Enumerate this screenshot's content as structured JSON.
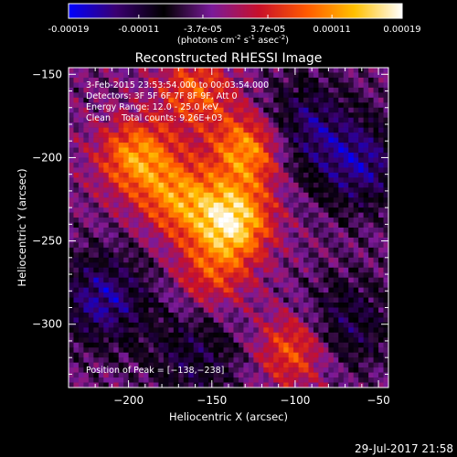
{
  "colorbar": {
    "ticks": [
      "-0.00019",
      "-0.00011",
      "-3.7e-05",
      "3.7e-05",
      "0.00011",
      "0.00019"
    ],
    "tick_values": [
      -0.00019,
      -0.00011,
      -3.7e-05,
      3.7e-05,
      0.00011,
      0.00019
    ],
    "range": [
      -0.00019,
      0.00019
    ],
    "units_parts": [
      "(photons cm",
      "-2",
      " s",
      "-1",
      " asec",
      "-2",
      ")"
    ],
    "stops": [
      "#0000ff",
      "#3a0070",
      "#000000",
      "#7a1a9a",
      "#c8102a",
      "#ff5a00",
      "#ffc000",
      "#ffffff"
    ]
  },
  "chart_data": {
    "type": "heatmap",
    "title": "Reconstructed RHESSI Image",
    "xlabel": "Heliocentric X (arcsec)",
    "ylabel": "Heliocentric Y (arcsec)",
    "xlim": [
      -236,
      -44
    ],
    "ylim": [
      -338,
      -146
    ],
    "xticks": [
      -200,
      -150,
      -100,
      -50
    ],
    "yticks": [
      -150,
      -200,
      -250,
      -300
    ],
    "xtick_labels": [
      "−200",
      "−150",
      "−100",
      "−50"
    ],
    "ytick_labels": [
      "−150",
      "−200",
      "−250",
      "−300"
    ],
    "annotations": [
      "3-Feb-2015 23:53:54.000 to 00:03:54.000",
      "Detectors: 3F 5F 6F 7F 8F 9F, Att 0",
      "Energy Range: 12.0 - 25.0 keV",
      "Clean    Total counts: 9.26E+03"
    ],
    "peak_label": "Position of Peak = [−138,−238]",
    "peak_position": [
      -138,
      -238
    ],
    "peak_value": 0.00019,
    "bright_sources": [
      {
        "x": -138,
        "y": -238,
        "value": 0.00019
      },
      {
        "x": -128,
        "y": -195,
        "value": 0.00015
      },
      {
        "x": -195,
        "y": -200,
        "value": 0.00014
      },
      {
        "x": -170,
        "y": -225,
        "value": 0.00012
      },
      {
        "x": -160,
        "y": -160,
        "value": 0.0001
      },
      {
        "x": -100,
        "y": -315,
        "value": 0.00011
      },
      {
        "x": -150,
        "y": -270,
        "value": 8e-05
      }
    ],
    "faint_regions": [
      {
        "x": -215,
        "y": -285,
        "value": -0.00012
      },
      {
        "x": -95,
        "y": -180,
        "value": -0.0001
      },
      {
        "x": -60,
        "y": -205,
        "value": -0.00011
      },
      {
        "x": -160,
        "y": -320,
        "value": -8e-05
      },
      {
        "x": -70,
        "y": -300,
        "value": -9e-05
      }
    ]
  },
  "footer": {
    "timestamp": "29-Jul-2017 21:58"
  }
}
